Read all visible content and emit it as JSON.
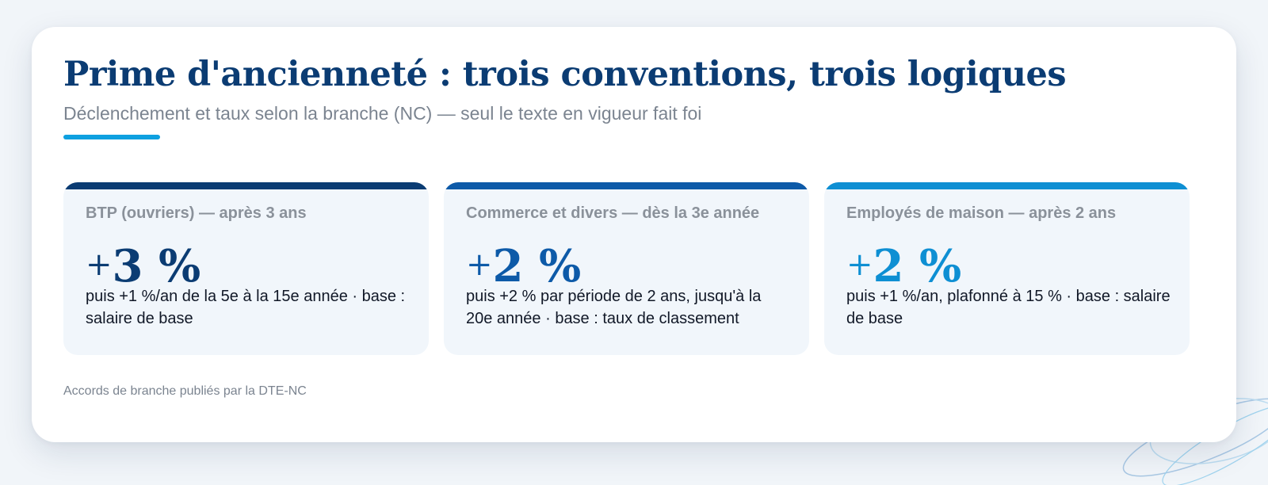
{
  "header": {
    "title": "Prime d'ancienneté : trois conventions, trois logiques",
    "subtitle": "Déclenchement et taux selon la branche (NC) — seul le texte en vigueur fait foi"
  },
  "cards": [
    {
      "label": "BTP (ouvriers) — après 3 ans",
      "sign": "+",
      "value": "3 %",
      "description": "puis +1 %/an de la 5e à la 15e année · base : salaire de base",
      "accent_color": "#0b3c73"
    },
    {
      "label": "Commerce et divers — dès la 3e année",
      "sign": "+",
      "value": "2 %",
      "description": "puis +2 % par période de 2 ans, jusqu'à la 20e année · base : taux de classement",
      "accent_color": "#0d5aa8"
    },
    {
      "label": "Employés de maison — après 2 ans",
      "sign": "+",
      "value": "2 %",
      "description": "puis +1 %/an, plafonné à 15 % · base : salaire de base",
      "accent_color": "#0e8fd3"
    }
  ],
  "footnote": "Accords de branche publiés par la DTE-NC",
  "colors": {
    "background": "#f1f5f9",
    "title": "#0b3c73",
    "accent_underline": "#0ea0e0",
    "panel_background": "#f1f6fb",
    "muted_text": "#7b8490"
  }
}
